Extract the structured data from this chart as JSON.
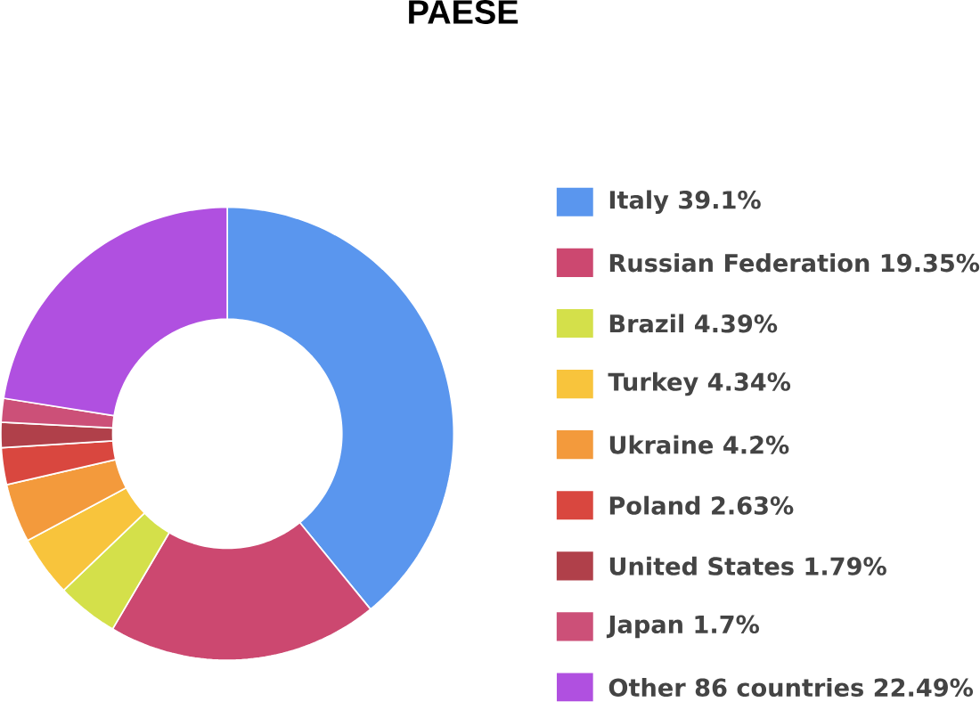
{
  "chart_data": {
    "type": "donut",
    "title": "PAESE",
    "categories": [
      "Italy 39.1%",
      "Russian Federation 19.35%",
      "Brazil 4.39%",
      "Turkey 4.34%",
      "Ukraine 4.2%",
      "Poland 2.63%",
      "United States 1.79%",
      "Japan 1.7%",
      "Other 86 countries 22.49%"
    ],
    "values": [
      39.1,
      19.35,
      4.39,
      4.34,
      4.2,
      2.63,
      1.79,
      1.7,
      22.49
    ],
    "colors": [
      "#5a96ee",
      "#cc4870",
      "#d4e04a",
      "#f8c43c",
      "#f39a3c",
      "#d9473f",
      "#b0404a",
      "#cc5078",
      "#b050e0"
    ],
    "legend": "right"
  }
}
